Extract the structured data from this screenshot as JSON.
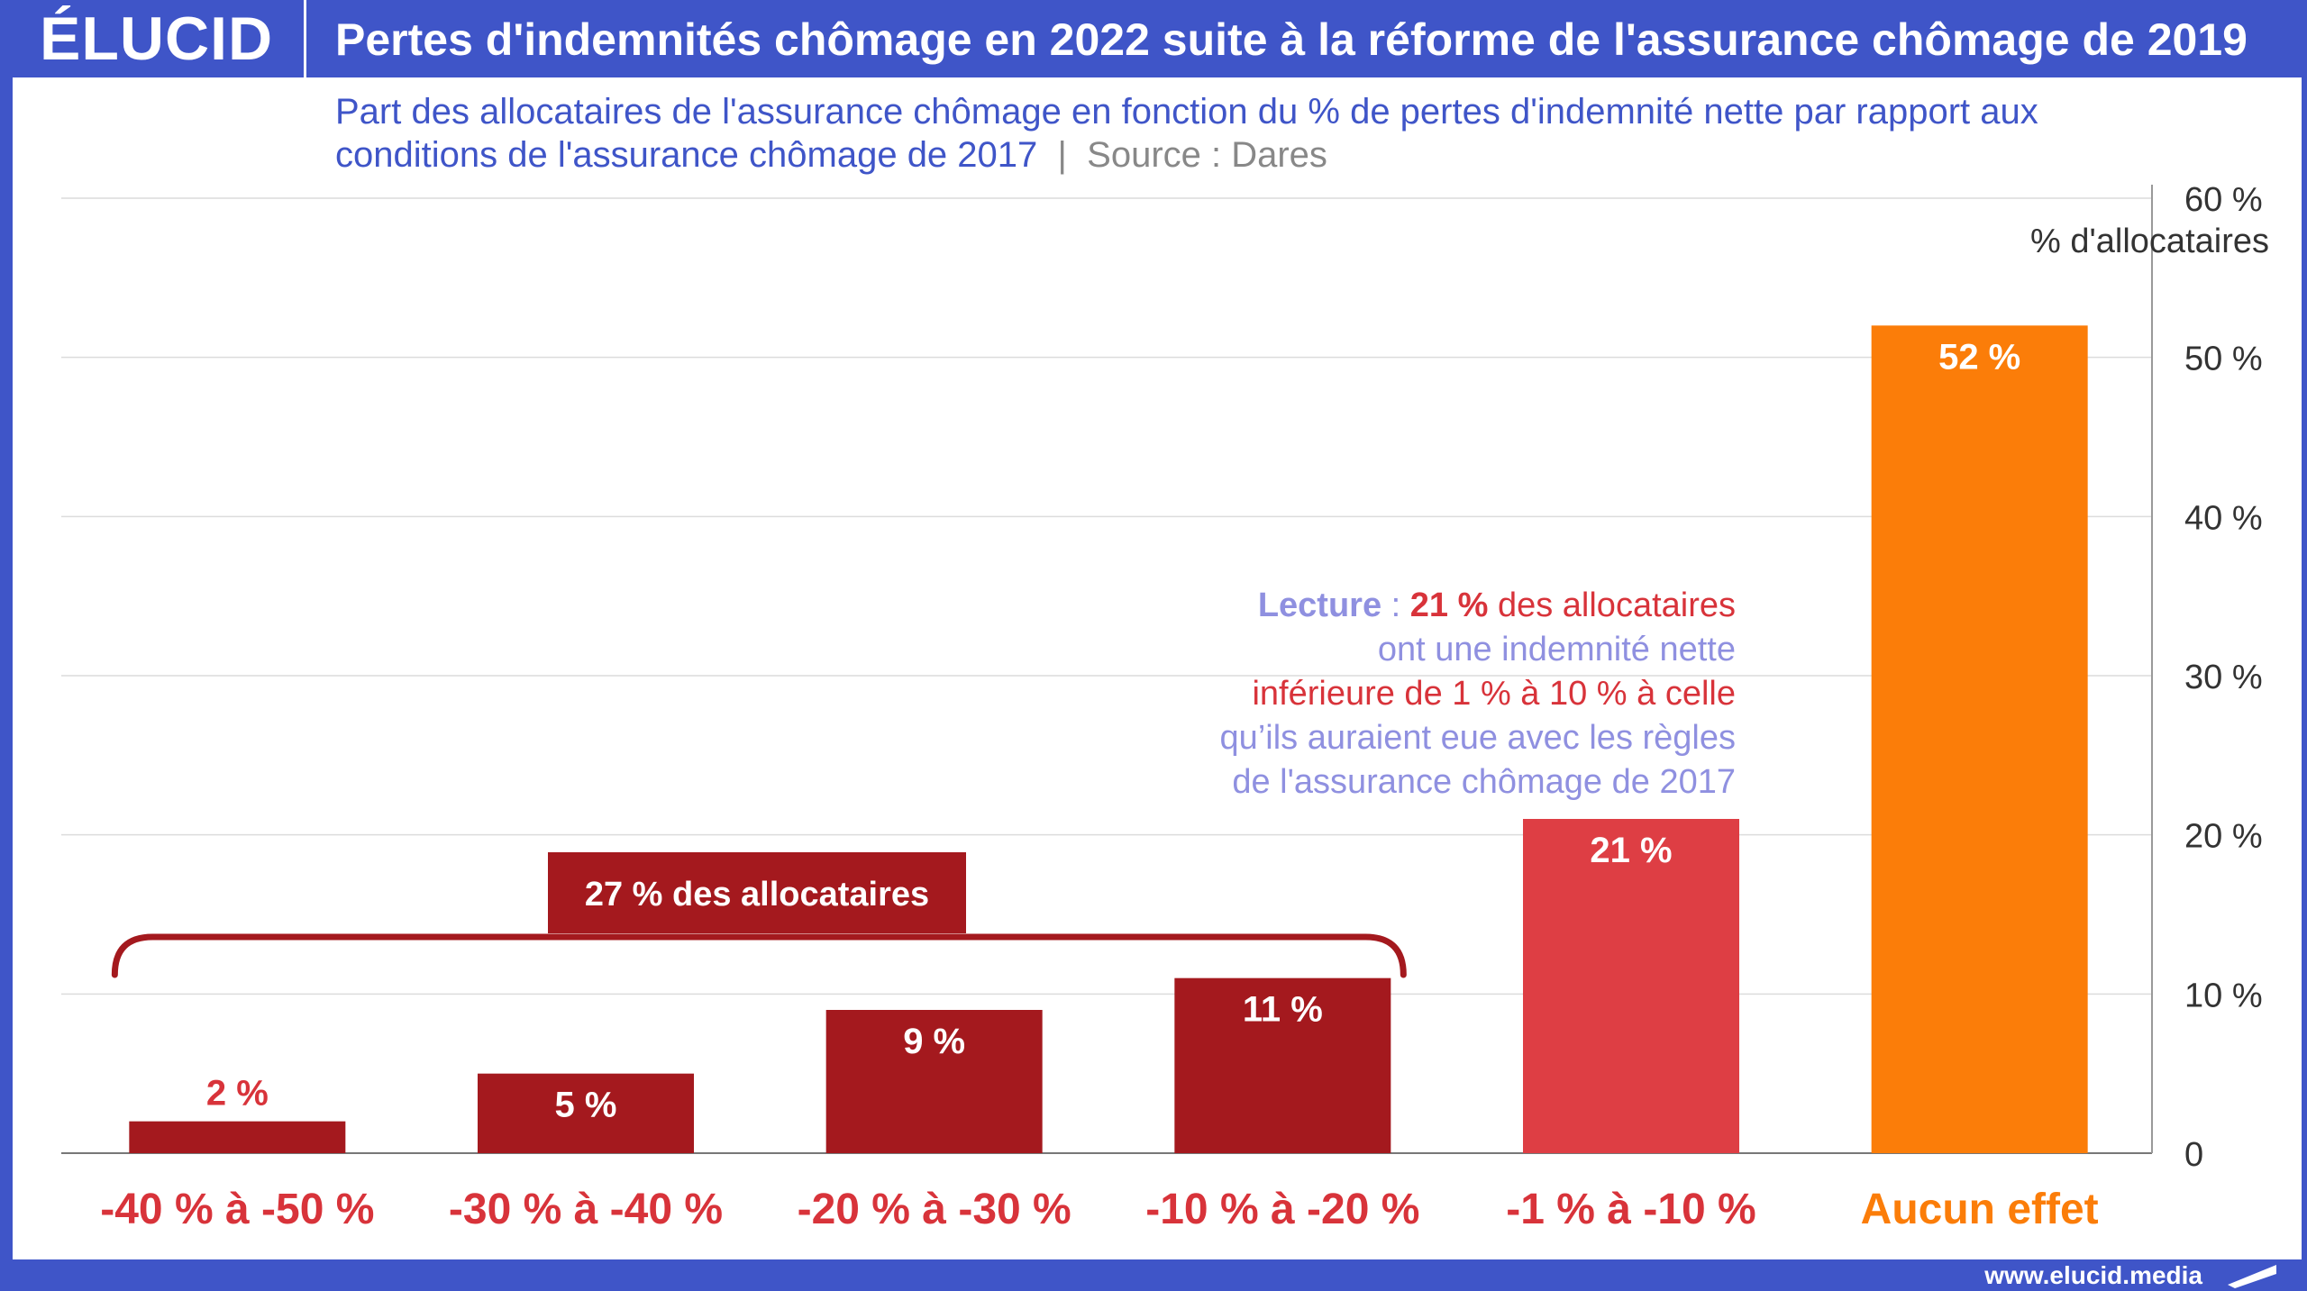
{
  "header": {
    "logo": "ÉLUCID",
    "title": "Pertes d'indemnités chômage en 2022 suite à la réforme de l'assurance chômage de 2019"
  },
  "subtitle": {
    "text": "Part des allocataires de l'assurance chômage en fonction du % de pertes d'indemnité nette par rapport aux conditions de l'assurance chômage de 2017",
    "separator": "|",
    "source": "Source : Dares"
  },
  "footer": {
    "url": "www.elucid.media"
  },
  "colors": {
    "brand": "#3f55c8",
    "dark_red": "#a4191e",
    "red": "#de3e44",
    "orange": "#fb7d09",
    "lecture_purple": "#8f90e0",
    "label_red": "#d8333a"
  },
  "chart_data": {
    "type": "bar",
    "categories": [
      "-40 % à -50 %",
      "-30 % à -40 %",
      "-20 % à -30 %",
      "-10 % à -20 %",
      "-1 % à -10 %",
      "Aucun effet"
    ],
    "values": [
      2,
      5,
      9,
      11,
      21,
      52
    ],
    "value_labels": [
      "2 %",
      "5 %",
      "9 %",
      "11 %",
      "21 %",
      "52 %"
    ],
    "bar_colors": [
      "#a4191e",
      "#a4191e",
      "#a4191e",
      "#a4191e",
      "#de3e44",
      "#fb7d09"
    ],
    "category_label_colors": [
      "#d8333a",
      "#d8333a",
      "#d8333a",
      "#d8333a",
      "#d8333a",
      "#fb7d09"
    ],
    "ylabel": "% d'allocataires",
    "ylim": [
      0,
      60
    ],
    "yticks": [
      0,
      10,
      20,
      30,
      40,
      50,
      60
    ],
    "ytick_labels": [
      "0",
      "10 %",
      "20 %",
      "30 %",
      "40 %",
      "50 %",
      "60 %"
    ],
    "yaxis_side": "right",
    "grid": true,
    "bracket": {
      "label": "27 % des allocataires",
      "from_category": 0,
      "to_category": 3
    },
    "annotation": {
      "lines": [
        [
          {
            "t": "Lecture",
            "s": "lecture-bold"
          },
          {
            "t": " : ",
            "s": "lecture"
          },
          {
            "t": "21 %",
            "s": "red-bold"
          },
          {
            "t": " des allocataires",
            "s": "red"
          }
        ],
        [
          {
            "t": "ont une indemnité nette",
            "s": "lecture"
          }
        ],
        [
          {
            "t": "inférieure de 1 % à 10 % à celle",
            "s": "red"
          }
        ],
        [
          {
            "t": "qu’ils auraient eue avec les règles",
            "s": "lecture"
          }
        ],
        [
          {
            "t": "de l'assurance chômage de 2017",
            "s": "lecture"
          }
        ]
      ]
    }
  }
}
